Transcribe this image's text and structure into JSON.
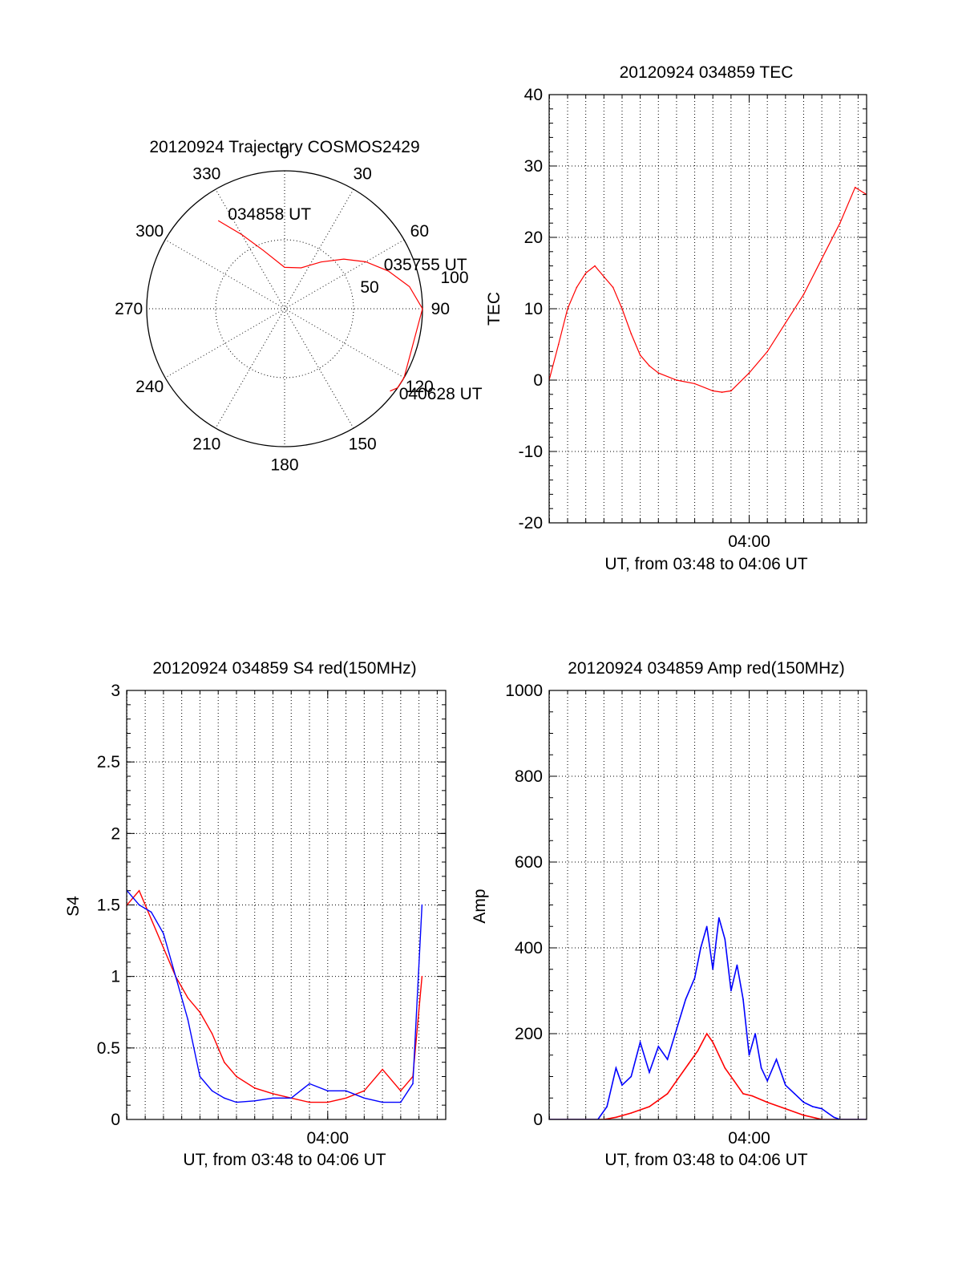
{
  "colors": {
    "red": "#ff0000",
    "blue": "#0000ff",
    "axis": "#000000"
  },
  "chart_data": [
    {
      "type": "polar",
      "title": "20120924 Trajectory COSMOS2429",
      "angle_labels": [
        "0",
        "30",
        "60",
        "90",
        "120",
        "150",
        "180",
        "210",
        "240",
        "270",
        "300",
        "330"
      ],
      "radius_labels": [
        "50",
        "100"
      ],
      "radius_range": [
        0,
        100
      ],
      "grid": true,
      "series": [
        {
          "color": "#ff0000",
          "points_az_zd": [
            [
              -37,
              80
            ],
            [
              -30,
              62
            ],
            [
              -20,
              45
            ],
            [
              0,
              30
            ],
            [
              22,
              32
            ],
            [
              38,
              43
            ],
            [
              50,
              56
            ],
            [
              60,
              68
            ],
            [
              70,
              80
            ],
            [
              80,
              92
            ],
            [
              90,
              100
            ],
            [
              120,
              100
            ],
            [
              125,
              100
            ],
            [
              128,
              97
            ]
          ]
        }
      ],
      "annotations": [
        {
          "text": "034858 UT",
          "az": -30,
          "zd": 80
        },
        {
          "text": "035755 UT",
          "az": 66,
          "zd": 80
        },
        {
          "text": "040628 UT",
          "az": 126,
          "zd": 104
        }
      ]
    },
    {
      "type": "line",
      "title": "20120924 034859 TEC",
      "xlabel": "UT, from 03:48 to 04:06 UT",
      "ylabel": "TEC",
      "xlim": [
        "03:48:59",
        "04:06:28"
      ],
      "ylim": [
        -20,
        40
      ],
      "xticks": [
        "04:00"
      ],
      "yticks": [
        -20,
        -10,
        0,
        10,
        20,
        30,
        40
      ],
      "grid": true,
      "series": [
        {
          "color": "#ff0000",
          "x": [
            "03:48:59",
            "03:49:30",
            "03:50:00",
            "03:50:30",
            "03:51:00",
            "03:51:30",
            "03:52:00",
            "03:52:30",
            "03:53:00",
            "03:53:30",
            "03:54:00",
            "03:54:30",
            "03:55:00",
            "03:56:00",
            "03:57:00",
            "03:58:00",
            "03:58:30",
            "03:59:00",
            "04:00:00",
            "04:01:00",
            "04:02:00",
            "04:03:00",
            "04:04:00",
            "04:05:00",
            "04:05:50",
            "04:06:28"
          ],
          "y": [
            0,
            5,
            10,
            13,
            15,
            16,
            14.5,
            13,
            10,
            6.5,
            3.5,
            2,
            1,
            0,
            -0.5,
            -1.5,
            -1.7,
            -1.5,
            1,
            4,
            8,
            12,
            17,
            22,
            27,
            26
          ]
        }
      ]
    },
    {
      "type": "line",
      "title": "20120924 034859 S4 red(150MHz)",
      "xlabel": "UT, from 03:48 to 04:06 UT",
      "ylabel": "S4",
      "xlim": [
        "03:48:59",
        "04:06:28"
      ],
      "ylim": [
        0,
        3
      ],
      "xticks": [
        "04:00"
      ],
      "yticks": [
        0,
        0.5,
        1,
        1.5,
        2,
        2.5,
        3
      ],
      "grid": true,
      "series": [
        {
          "color": "#ff0000",
          "x": [
            "03:49:00",
            "03:49:40",
            "03:50:20",
            "03:51:00",
            "03:51:40",
            "03:52:20",
            "03:53:00",
            "03:53:40",
            "03:54:20",
            "03:55:00",
            "03:56:00",
            "03:57:00",
            "03:58:00",
            "03:59:00",
            "04:00:00",
            "04:01:00",
            "04:02:00",
            "04:03:00",
            "04:04:00",
            "04:04:40",
            "04:05:10"
          ],
          "y": [
            1.5,
            1.6,
            1.4,
            1.2,
            1.0,
            0.85,
            0.75,
            0.6,
            0.4,
            0.3,
            0.22,
            0.18,
            0.15,
            0.12,
            0.12,
            0.15,
            0.2,
            0.35,
            0.2,
            0.3,
            1.0
          ]
        },
        {
          "color": "#0000ff",
          "x": [
            "03:49:00",
            "03:49:40",
            "03:50:20",
            "03:51:00",
            "03:51:40",
            "03:52:20",
            "03:53:00",
            "03:53:40",
            "03:54:20",
            "03:55:00",
            "03:56:00",
            "03:57:00",
            "03:58:00",
            "03:59:00",
            "04:00:00",
            "04:01:00",
            "04:02:00",
            "04:03:00",
            "04:04:00",
            "04:04:40",
            "04:05:10"
          ],
          "y": [
            1.6,
            1.5,
            1.45,
            1.3,
            1.0,
            0.7,
            0.3,
            0.2,
            0.15,
            0.12,
            0.13,
            0.15,
            0.15,
            0.25,
            0.2,
            0.2,
            0.15,
            0.12,
            0.12,
            0.25,
            1.5
          ]
        }
      ]
    },
    {
      "type": "line",
      "title": "20120924 034859 Amp red(150MHz)",
      "xlabel": "UT, from 03:48 to 04:06 UT",
      "ylabel": "Amp",
      "xlim": [
        "03:48:59",
        "04:06:28"
      ],
      "ylim": [
        0,
        1000
      ],
      "xticks": [
        "04:00"
      ],
      "yticks": [
        0,
        200,
        400,
        600,
        800,
        1000
      ],
      "grid": true,
      "series": [
        {
          "color": "#ff0000",
          "x": [
            "03:49:00",
            "03:52:00",
            "03:52:40",
            "03:53:30",
            "03:54:30",
            "03:55:30",
            "03:56:00",
            "03:56:40",
            "03:57:10",
            "03:57:40",
            "03:58:00",
            "03:58:20",
            "03:58:40",
            "03:59:10",
            "03:59:40",
            "04:00:10",
            "04:01:00",
            "04:02:00",
            "04:03:00",
            "04:04:00",
            "04:06:28"
          ],
          "y": [
            0,
            0,
            5,
            15,
            30,
            60,
            90,
            130,
            160,
            200,
            180,
            150,
            120,
            90,
            60,
            55,
            40,
            25,
            10,
            0,
            0
          ]
        },
        {
          "color": "#0000ff",
          "x": [
            "03:49:00",
            "03:51:40",
            "03:52:10",
            "03:52:40",
            "03:53:00",
            "03:53:30",
            "03:54:00",
            "03:54:30",
            "03:55:00",
            "03:55:30",
            "03:56:00",
            "03:56:30",
            "03:57:00",
            "03:57:20",
            "03:57:40",
            "03:58:00",
            "03:58:20",
            "03:58:40",
            "03:59:00",
            "03:59:20",
            "03:59:40",
            "04:00:00",
            "04:00:20",
            "04:00:40",
            "04:01:00",
            "04:01:30",
            "04:02:00",
            "04:02:30",
            "04:03:00",
            "04:03:30",
            "04:04:00",
            "04:04:20",
            "04:04:40",
            "04:05:00",
            "04:06:28"
          ],
          "y": [
            0,
            0,
            30,
            120,
            80,
            100,
            180,
            110,
            170,
            140,
            210,
            280,
            330,
            400,
            450,
            350,
            470,
            420,
            300,
            360,
            280,
            150,
            200,
            120,
            90,
            140,
            80,
            60,
            40,
            30,
            25,
            15,
            5,
            0,
            0
          ]
        }
      ]
    }
  ]
}
